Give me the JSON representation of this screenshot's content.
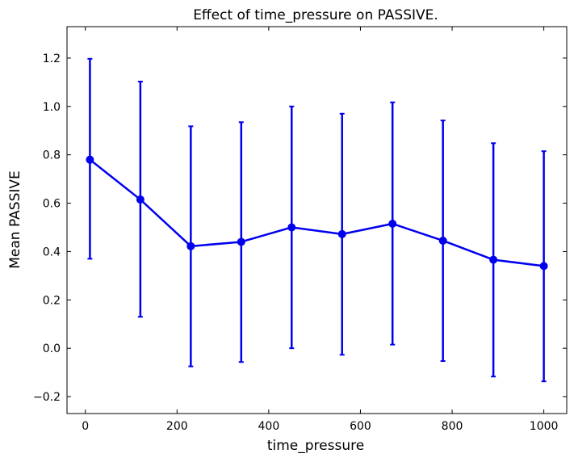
{
  "chart_data": {
    "type": "line",
    "title": "Effect of time_pressure on PASSIVE.",
    "xlabel": "time_pressure",
    "ylabel": "Mean PASSIVE",
    "xlim": [
      -40,
      1050
    ],
    "ylim": [
      -0.27,
      1.33
    ],
    "xticks": [
      0,
      200,
      400,
      600,
      800,
      1000
    ],
    "yticks": [
      -0.2,
      0.0,
      0.2,
      0.4,
      0.6,
      0.8,
      1.0,
      1.2
    ],
    "xtick_labels": [
      "0",
      "200",
      "400",
      "600",
      "800",
      "1000"
    ],
    "ytick_labels": [
      "−0.2",
      "0.0",
      "0.2",
      "0.4",
      "0.6",
      "0.8",
      "1.0",
      "1.2"
    ],
    "grid": false,
    "color": "#0000ee",
    "series": [
      {
        "x": [
          10,
          120,
          230,
          340,
          450,
          560,
          670,
          780,
          890,
          1000
        ],
        "y": [
          0.78,
          0.615,
          0.422,
          0.44,
          0.5,
          0.472,
          0.515,
          0.445,
          0.366,
          0.34
        ],
        "err_low": [
          0.37,
          0.13,
          -0.075,
          -0.057,
          0.0,
          -0.027,
          0.015,
          -0.053,
          -0.117,
          -0.137
        ],
        "err_high": [
          1.197,
          1.103,
          0.918,
          0.935,
          1.0,
          0.97,
          1.017,
          0.942,
          0.848,
          0.815
        ]
      }
    ]
  }
}
